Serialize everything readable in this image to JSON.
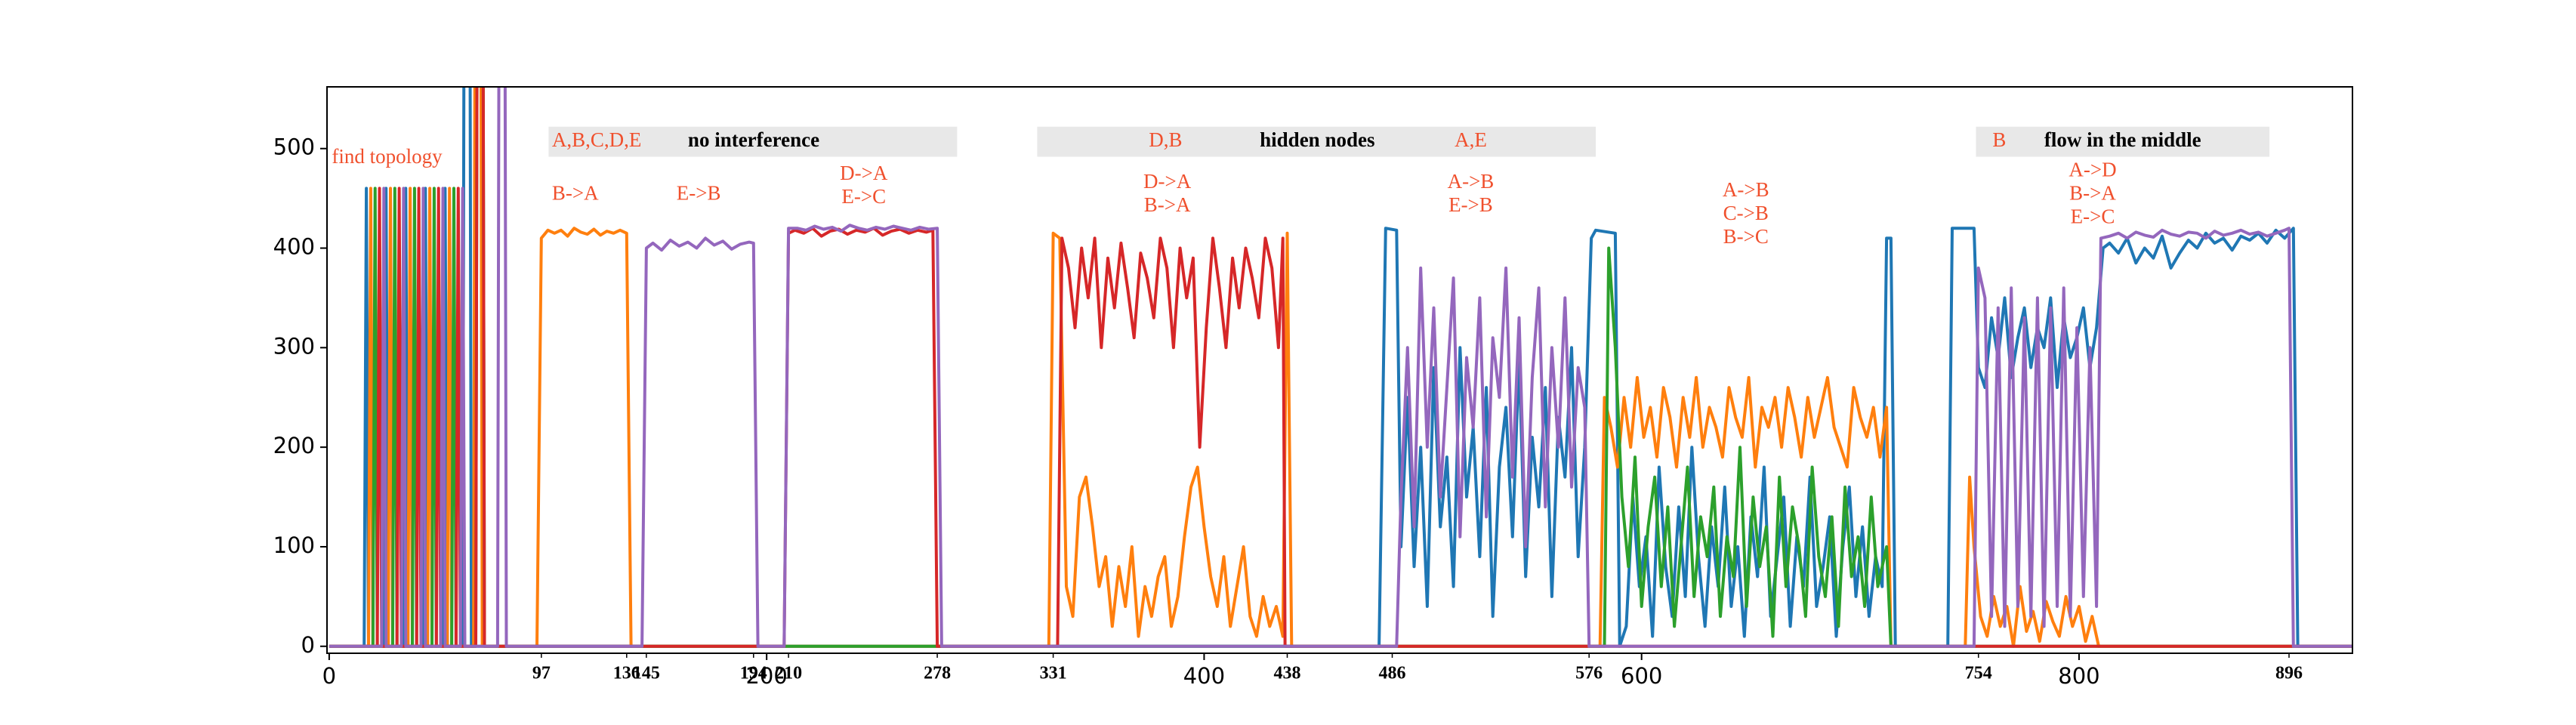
{
  "chart_data": {
    "type": "line",
    "xlim": [
      -1,
      925
    ],
    "ylim": [
      -7,
      562
    ],
    "xticks": [
      0,
      200,
      400,
      600,
      800
    ],
    "xticks_minor": [
      97,
      136,
      145,
      194,
      210,
      278,
      331,
      438,
      486,
      576,
      754,
      896
    ],
    "yticks": [
      0,
      100,
      200,
      300,
      400,
      500
    ],
    "topology_label": "find topology",
    "phases": [
      {
        "nodes": "A,B,C,D,E",
        "label": "no interference"
      },
      {
        "nodes": "D,B",
        "label": "hidden nodes",
        "nodes_right": "A,E"
      },
      {
        "nodes": "B",
        "label": "flow in the middle"
      }
    ],
    "flows": [
      [
        "B->A"
      ],
      [
        "E->B"
      ],
      [
        "D->A",
        "E->C"
      ],
      [
        "D->A",
        "B->A"
      ],
      [
        "A->B",
        "E->B"
      ],
      [
        "A->B",
        "C->B",
        "B->C"
      ],
      [
        "A->D",
        "B->A",
        "E->C"
      ]
    ],
    "series": [
      {
        "color": "#1f77b4",
        "x": [
          0,
          16,
          17,
          18,
          25,
          26,
          27,
          34,
          35,
          36,
          43,
          44,
          45,
          52,
          53,
          54,
          61,
          62,
          64,
          65,
          480,
          483,
          488,
          490,
          493,
          496,
          499,
          502,
          505,
          508,
          511,
          514,
          517,
          520,
          523,
          526,
          529,
          532,
          535,
          538,
          541,
          544,
          547,
          550,
          553,
          556,
          559,
          562,
          565,
          568,
          571,
          574,
          577,
          579,
          588,
          590,
          593,
          596,
          599,
          602,
          605,
          608,
          611,
          614,
          617,
          620,
          623,
          626,
          629,
          632,
          635,
          638,
          641,
          644,
          647,
          650,
          653,
          656,
          659,
          662,
          665,
          668,
          671,
          674,
          677,
          680,
          683,
          686,
          689,
          692,
          695,
          698,
          701,
          704,
          707,
          710,
          712,
          714,
          716,
          740,
          742,
          752,
          754,
          757,
          760,
          763,
          766,
          769,
          772,
          775,
          778,
          781,
          784,
          787,
          790,
          793,
          796,
          799,
          802,
          805,
          808,
          811,
          814,
          818,
          822,
          826,
          830,
          834,
          838,
          842,
          846,
          850,
          854,
          858,
          862,
          866,
          870,
          874,
          878,
          882,
          886,
          890,
          894,
          898,
          900,
          925
        ],
        "values": [
          0,
          0,
          460,
          0,
          0,
          460,
          0,
          0,
          460,
          0,
          0,
          460,
          0,
          0,
          460,
          0,
          0,
          1000,
          1000,
          0,
          0,
          420,
          418,
          100,
          250,
          80,
          200,
          40,
          280,
          120,
          190,
          60,
          300,
          150,
          220,
          90,
          260,
          30,
          180,
          240,
          110,
          290,
          70,
          210,
          140,
          260,
          50,
          230,
          170,
          300,
          90,
          200,
          410,
          418,
          415,
          0,
          20,
          150,
          60,
          110,
          10,
          180,
          80,
          30,
          140,
          50,
          200,
          90,
          20,
          120,
          60,
          160,
          40,
          100,
          10,
          130,
          70,
          180,
          30,
          90,
          150,
          20,
          110,
          60,
          170,
          40,
          80,
          130,
          10,
          100,
          160,
          50,
          120,
          30,
          90,
          60,
          410,
          410,
          0,
          0,
          420,
          420,
          280,
          260,
          330,
          290,
          350,
          270,
          310,
          340,
          280,
          320,
          300,
          350,
          260,
          330,
          290,
          310,
          340,
          280,
          320,
          400,
          405,
          395,
          410,
          385,
          400,
          390,
          412,
          380,
          395,
          408,
          400,
          415,
          405,
          410,
          398,
          412,
          408,
          415,
          405,
          418,
          410,
          420,
          0,
          0
        ]
      },
      {
        "color": "#ff7f0e",
        "x": [
          0,
          18,
          19,
          20,
          27,
          28,
          29,
          36,
          37,
          38,
          45,
          46,
          47,
          54,
          55,
          56,
          66,
          67,
          69,
          70,
          95,
          97,
          100,
          103,
          106,
          109,
          112,
          115,
          118,
          121,
          124,
          127,
          130,
          133,
          136,
          138,
          329,
          331,
          334,
          337,
          340,
          343,
          346,
          349,
          352,
          355,
          358,
          361,
          364,
          367,
          370,
          373,
          376,
          379,
          382,
          385,
          388,
          391,
          394,
          397,
          400,
          403,
          406,
          409,
          412,
          415,
          418,
          421,
          424,
          427,
          430,
          433,
          436,
          438,
          440,
          581,
          583,
          586,
          589,
          592,
          595,
          598,
          601,
          604,
          607,
          610,
          613,
          616,
          619,
          622,
          625,
          628,
          631,
          634,
          637,
          640,
          643,
          646,
          649,
          652,
          655,
          658,
          661,
          664,
          667,
          670,
          673,
          676,
          679,
          682,
          685,
          688,
          691,
          694,
          697,
          700,
          703,
          706,
          709,
          712,
          714,
          748,
          750,
          752,
          755,
          758,
          761,
          764,
          767,
          770,
          773,
          776,
          779,
          782,
          785,
          788,
          791,
          794,
          797,
          800,
          803,
          806,
          809,
          925
        ],
        "values": [
          0,
          0,
          460,
          0,
          0,
          460,
          0,
          0,
          460,
          0,
          0,
          460,
          0,
          0,
          460,
          0,
          0,
          1000,
          1000,
          0,
          0,
          410,
          418,
          415,
          418,
          412,
          420,
          416,
          414,
          419,
          413,
          417,
          415,
          418,
          415,
          0,
          0,
          415,
          410,
          60,
          30,
          150,
          170,
          120,
          60,
          90,
          20,
          80,
          40,
          100,
          10,
          60,
          30,
          70,
          90,
          20,
          50,
          110,
          160,
          180,
          120,
          70,
          40,
          90,
          20,
          60,
          100,
          30,
          10,
          50,
          20,
          40,
          10,
          415,
          0,
          0,
          250,
          220,
          180,
          250,
          200,
          270,
          210,
          240,
          190,
          260,
          230,
          180,
          250,
          210,
          270,
          200,
          240,
          220,
          190,
          260,
          230,
          210,
          270,
          180,
          240,
          220,
          250,
          200,
          260,
          230,
          190,
          250,
          210,
          240,
          270,
          220,
          200,
          180,
          260,
          230,
          210,
          240,
          190,
          240,
          0,
          0,
          170,
          100,
          30,
          10,
          50,
          20,
          40,
          0,
          60,
          15,
          35,
          5,
          45,
          25,
          10,
          50,
          20,
          40,
          5,
          30,
          0,
          0
        ]
      },
      {
        "color": "#2ca02c",
        "x": [
          0,
          20,
          21,
          22,
          29,
          30,
          31,
          38,
          39,
          40,
          47,
          48,
          49,
          56,
          57,
          58,
          67,
          68,
          70,
          71,
          583,
          585,
          588,
          591,
          594,
          597,
          600,
          603,
          606,
          609,
          612,
          615,
          618,
          621,
          624,
          627,
          630,
          633,
          636,
          639,
          642,
          645,
          648,
          651,
          654,
          657,
          660,
          663,
          666,
          669,
          672,
          675,
          678,
          681,
          684,
          687,
          690,
          693,
          696,
          699,
          702,
          705,
          708,
          712,
          714,
          925
        ],
        "values": [
          0,
          0,
          460,
          0,
          0,
          460,
          0,
          0,
          460,
          0,
          0,
          460,
          0,
          0,
          460,
          0,
          0,
          1000,
          1000,
          0,
          0,
          400,
          300,
          150,
          80,
          190,
          40,
          120,
          170,
          60,
          140,
          20,
          100,
          180,
          50,
          130,
          90,
          160,
          30,
          110,
          70,
          200,
          40,
          150,
          80,
          120,
          10,
          170,
          60,
          140,
          100,
          30,
          180,
          90,
          50,
          130,
          20,
          160,
          70,
          110,
          40,
          150,
          60,
          100,
          0,
          0
        ]
      },
      {
        "color": "#d62728",
        "x": [
          0,
          22,
          23,
          24,
          31,
          32,
          33,
          40,
          41,
          42,
          49,
          50,
          51,
          58,
          59,
          60,
          67,
          68,
          70,
          71,
          208,
          210,
          213,
          217,
          221,
          225,
          229,
          233,
          237,
          241,
          245,
          249,
          253,
          257,
          261,
          265,
          269,
          273,
          276,
          278,
          333,
          335,
          338,
          341,
          344,
          347,
          350,
          353,
          356,
          359,
          362,
          365,
          368,
          371,
          374,
          377,
          380,
          383,
          386,
          389,
          392,
          395,
          398,
          401,
          404,
          407,
          410,
          413,
          416,
          419,
          422,
          425,
          428,
          431,
          434,
          436,
          437,
          925
        ],
        "values": [
          0,
          0,
          460,
          0,
          0,
          460,
          0,
          0,
          460,
          0,
          0,
          460,
          0,
          0,
          460,
          0,
          0,
          1000,
          1000,
          0,
          0,
          415,
          418,
          415,
          420,
          412,
          417,
          419,
          414,
          418,
          416,
          420,
          413,
          417,
          419,
          415,
          418,
          416,
          418,
          0,
          0,
          410,
          380,
          320,
          400,
          350,
          410,
          300,
          390,
          340,
          405,
          360,
          310,
          395,
          370,
          330,
          410,
          380,
          300,
          400,
          350,
          390,
          200,
          320,
          410,
          360,
          300,
          390,
          340,
          400,
          370,
          330,
          410,
          380,
          300,
          410,
          0,
          0
        ]
      },
      {
        "color": "#9467bd",
        "x": [
          0,
          24,
          25,
          26,
          33,
          34,
          35,
          42,
          43,
          44,
          51,
          52,
          53,
          60,
          61,
          62,
          77,
          78,
          80,
          81,
          143,
          145,
          148,
          152,
          156,
          160,
          164,
          168,
          172,
          176,
          180,
          184,
          188,
          192,
          194,
          196,
          208,
          210,
          214,
          218,
          222,
          226,
          230,
          234,
          238,
          242,
          246,
          250,
          254,
          258,
          262,
          266,
          270,
          274,
          278,
          280,
          488,
          490,
          493,
          496,
          499,
          502,
          505,
          508,
          511,
          514,
          517,
          520,
          523,
          526,
          529,
          532,
          535,
          538,
          541,
          544,
          547,
          550,
          553,
          556,
          559,
          562,
          565,
          568,
          571,
          574,
          576,
          752,
          754,
          757,
          760,
          763,
          766,
          769,
          772,
          775,
          778,
          781,
          784,
          787,
          790,
          793,
          796,
          799,
          802,
          805,
          808,
          810,
          814,
          818,
          822,
          826,
          830,
          834,
          838,
          842,
          846,
          850,
          854,
          858,
          862,
          866,
          870,
          874,
          878,
          882,
          886,
          890,
          894,
          896,
          898,
          925
        ],
        "values": [
          0,
          0,
          460,
          0,
          0,
          460,
          0,
          0,
          460,
          0,
          0,
          460,
          0,
          0,
          460,
          0,
          0,
          1000,
          1000,
          0,
          0,
          400,
          405,
          398,
          408,
          402,
          406,
          400,
          410,
          403,
          407,
          399,
          404,
          406,
          405,
          0,
          0,
          420,
          420,
          418,
          422,
          419,
          421,
          417,
          423,
          420,
          418,
          421,
          419,
          422,
          420,
          418,
          421,
          419,
          420,
          0,
          0,
          150,
          300,
          120,
          380,
          200,
          340,
          150,
          260,
          370,
          110,
          290,
          220,
          350,
          130,
          310,
          250,
          380,
          170,
          330,
          100,
          270,
          360,
          140,
          300,
          200,
          350,
          160,
          280,
          240,
          0,
          0,
          380,
          350,
          30,
          340,
          20,
          360,
          40,
          330,
          30,
          350,
          20,
          340,
          40,
          360,
          30,
          320,
          50,
          300,
          40,
          410,
          412,
          415,
          410,
          416,
          413,
          411,
          418,
          414,
          412,
          416,
          415,
          410,
          417,
          413,
          415,
          418,
          414,
          416,
          412,
          415,
          418,
          420,
          0,
          0
        ]
      }
    ]
  }
}
